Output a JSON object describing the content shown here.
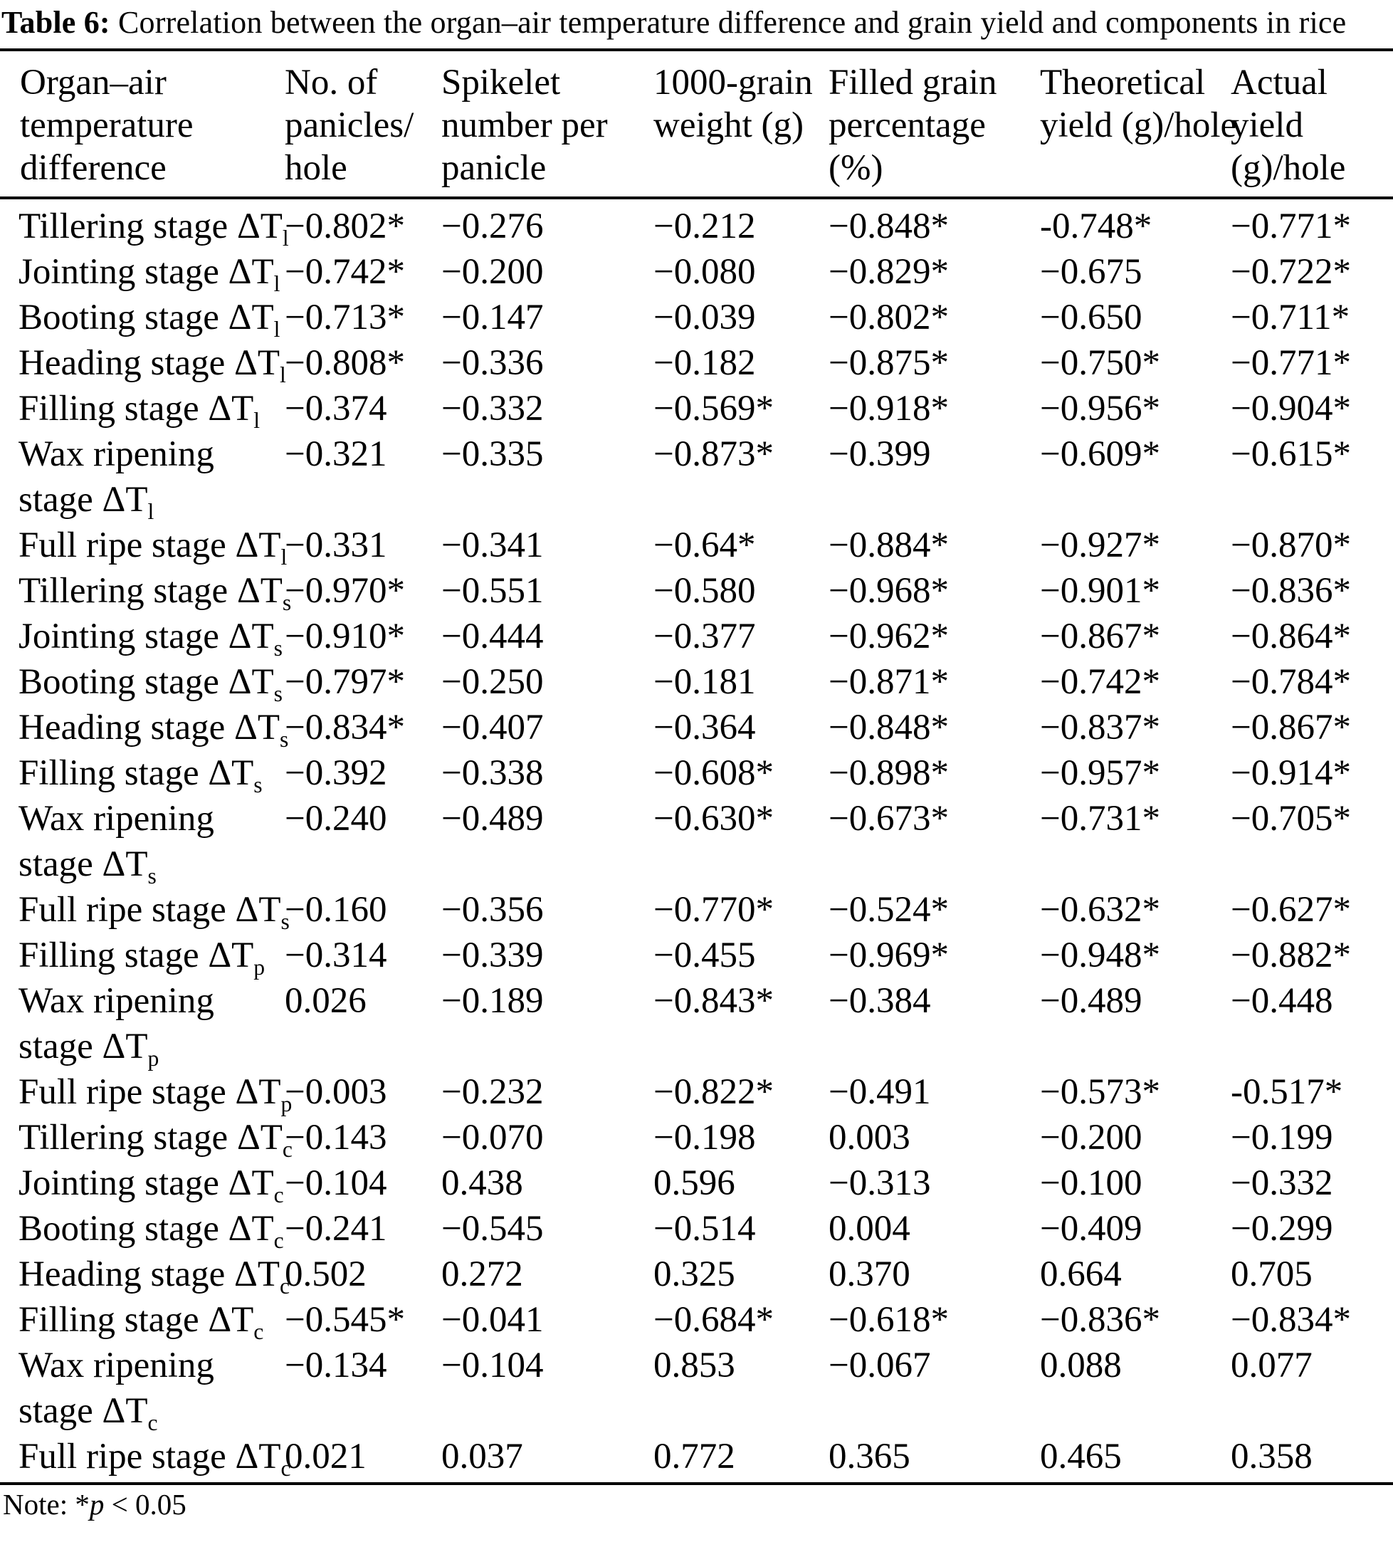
{
  "title": {
    "label": "Table 6:",
    "text": " Correlation between the organ–air temperature difference and grain yield and components in rice"
  },
  "table": {
    "headers": [
      {
        "lines": [
          "Organ–air",
          "temperature",
          "difference"
        ]
      },
      {
        "lines": [
          "No. of",
          "panicles/",
          "hole"
        ]
      },
      {
        "lines": [
          "Spikelet",
          "number per",
          "panicle"
        ]
      },
      {
        "lines": [
          "1000-grain",
          "weight (g)"
        ]
      },
      {
        "lines": [
          "Filled grain",
          "percentage",
          "(%)"
        ]
      },
      {
        "lines": [
          "Theoretical",
          "yield (g)/hole"
        ]
      },
      {
        "lines": [
          "Actual",
          "yield",
          "(g)/hole"
        ]
      }
    ],
    "rows": [
      {
        "label_lines": [
          "Tillering stage ΔT_l"
        ],
        "values": [
          "−0.802*",
          "−0.276",
          "−0.212",
          "−0.848*",
          "-0.748*",
          "−0.771*"
        ]
      },
      {
        "label_lines": [
          "Jointing stage ΔT_l"
        ],
        "values": [
          "−0.742*",
          "−0.200",
          "−0.080",
          "−0.829*",
          "−0.675",
          "−0.722*"
        ]
      },
      {
        "label_lines": [
          "Booting stage ΔT_l"
        ],
        "values": [
          "−0.713*",
          "−0.147",
          "−0.039",
          "−0.802*",
          "−0.650",
          "−0.711*"
        ]
      },
      {
        "label_lines": [
          "Heading stage ΔT_l"
        ],
        "values": [
          "−0.808*",
          "−0.336",
          "−0.182",
          "−0.875*",
          "−0.750*",
          "−0.771*"
        ]
      },
      {
        "label_lines": [
          "Filling stage ΔT_l"
        ],
        "values": [
          "−0.374",
          "−0.332",
          "−0.569*",
          "−0.918*",
          "−0.956*",
          "−0.904*"
        ]
      },
      {
        "label_lines": [
          "Wax ripening",
          "stage ΔT_l"
        ],
        "values": [
          "−0.321",
          "−0.335",
          "−0.873*",
          "−0.399",
          "−0.609*",
          "−0.615*"
        ]
      },
      {
        "label_lines": [
          "Full ripe stage ΔT_l"
        ],
        "values": [
          "−0.331",
          "−0.341",
          "−0.64*",
          "−0.884*",
          "−0.927*",
          "−0.870*"
        ]
      },
      {
        "label_lines": [
          "Tillering stage ΔT_s"
        ],
        "values": [
          "−0.970*",
          "−0.551",
          "−0.580",
          "−0.968*",
          "−0.901*",
          "−0.836*"
        ]
      },
      {
        "label_lines": [
          "Jointing stage ΔT_s"
        ],
        "values": [
          "−0.910*",
          "−0.444",
          "−0.377",
          "−0.962*",
          "−0.867*",
          "−0.864*"
        ]
      },
      {
        "label_lines": [
          "Booting stage ΔT_s"
        ],
        "values": [
          "−0.797*",
          "−0.250",
          "−0.181",
          "−0.871*",
          "−0.742*",
          "−0.784*"
        ]
      },
      {
        "label_lines": [
          "Heading stage ΔT_s"
        ],
        "values": [
          "−0.834*",
          "−0.407",
          "−0.364",
          "−0.848*",
          "−0.837*",
          "−0.867*"
        ]
      },
      {
        "label_lines": [
          "Filling stage ΔT_s"
        ],
        "values": [
          "−0.392",
          "−0.338",
          "−0.608*",
          "−0.898*",
          "−0.957*",
          "−0.914*"
        ]
      },
      {
        "label_lines": [
          "Wax ripening",
          "stage ΔT_s"
        ],
        "values": [
          "−0.240",
          "−0.489",
          "−0.630*",
          "−0.673*",
          "−0.731*",
          "−0.705*"
        ]
      },
      {
        "label_lines": [
          "Full ripe stage ΔT_s"
        ],
        "values": [
          "−0.160",
          "−0.356",
          "−0.770*",
          "−0.524*",
          "−0.632*",
          "−0.627*"
        ]
      },
      {
        "label_lines": [
          "Filling stage ΔT_p"
        ],
        "values": [
          "−0.314",
          "−0.339",
          "−0.455",
          "−0.969*",
          "−0.948*",
          "−0.882*"
        ]
      },
      {
        "label_lines": [
          "Wax ripening",
          "stage ΔT_p"
        ],
        "values": [
          "0.026",
          "−0.189",
          "−0.843*",
          "−0.384",
          "−0.489",
          "−0.448"
        ]
      },
      {
        "label_lines": [
          "Full ripe stage ΔT_p"
        ],
        "values": [
          "−0.003",
          "−0.232",
          "−0.822*",
          "−0.491",
          "−0.573*",
          "-0.517*"
        ]
      },
      {
        "label_lines": [
          "Tillering stage ΔT_c"
        ],
        "values": [
          "−0.143",
          "−0.070",
          "−0.198",
          "0.003",
          "−0.200",
          "−0.199"
        ]
      },
      {
        "label_lines": [
          "Jointing stage ΔT_c"
        ],
        "values": [
          "−0.104",
          "0.438",
          "0.596",
          "−0.313",
          "−0.100",
          "−0.332"
        ]
      },
      {
        "label_lines": [
          "Booting stage ΔT_c"
        ],
        "values": [
          "−0.241",
          "−0.545",
          "−0.514",
          "0.004",
          "−0.409",
          "−0.299"
        ]
      },
      {
        "label_lines": [
          "Heading stage ΔT_c"
        ],
        "values": [
          "0.502",
          "0.272",
          "0.325",
          "0.370",
          "0.664",
          "0.705"
        ]
      },
      {
        "label_lines": [
          "Filling stage ΔT_c"
        ],
        "values": [
          "−0.545*",
          "−0.041",
          "−0.684*",
          "−0.618*",
          "−0.836*",
          "−0.834*"
        ]
      },
      {
        "label_lines": [
          "Wax ripening",
          "stage ΔT_c"
        ],
        "values": [
          "−0.134",
          "−0.104",
          "0.853",
          "−0.067",
          "0.088",
          "0.077"
        ]
      },
      {
        "label_lines": [
          "Full ripe stage ΔT_c"
        ],
        "values": [
          "0.021",
          "0.037",
          "0.772",
          "0.365",
          "0.465",
          "0.358"
        ]
      }
    ]
  },
  "note": {
    "prefix": "Note: *",
    "italic": "p",
    "rest": " < 0.05"
  }
}
